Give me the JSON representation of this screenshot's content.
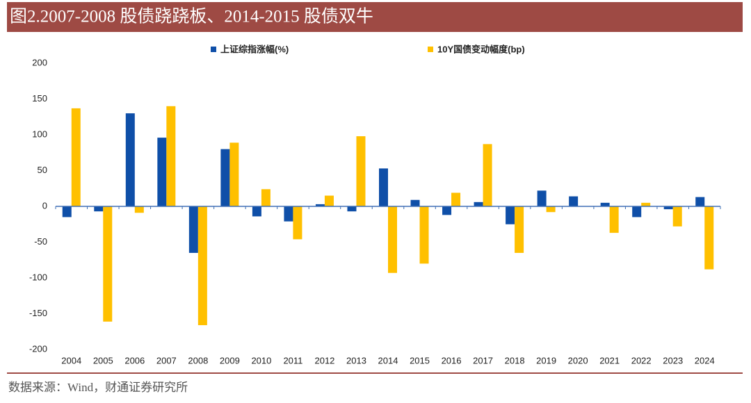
{
  "chart_data": {
    "type": "bar",
    "title": "图2.2007-2008 股债跷跷板、2014-2015 股债双牛",
    "source": "数据来源：Wind，财通证券研究所",
    "categories": [
      "2004",
      "2005",
      "2006",
      "2007",
      "2008",
      "2009",
      "2010",
      "2011",
      "2012",
      "2013",
      "2014",
      "2015",
      "2016",
      "2017",
      "2018",
      "2019",
      "2020",
      "2021",
      "2022",
      "2023",
      "2024"
    ],
    "series": [
      {
        "name": "上证综指涨幅(%)",
        "color": "#0f4fa8",
        "values": [
          -15,
          -7,
          130,
          96,
          -65,
          80,
          -14,
          -21,
          3,
          -7,
          53,
          9,
          -12,
          6,
          -25,
          22,
          14,
          5,
          -15,
          -4,
          13
        ]
      },
      {
        "name": "10Y国债变动幅度(bp)",
        "color": "#ffc000",
        "values": [
          137,
          -161,
          -9,
          140,
          -166,
          89,
          24,
          -46,
          15,
          98,
          -93,
          -80,
          19,
          87,
          -65,
          -8,
          0,
          -37,
          5,
          -28,
          -88
        ]
      }
    ],
    "ylim": [
      -200,
      200
    ],
    "yticks": [
      -200,
      -150,
      -100,
      -50,
      0,
      50,
      100,
      150,
      200
    ],
    "legend": "top"
  }
}
